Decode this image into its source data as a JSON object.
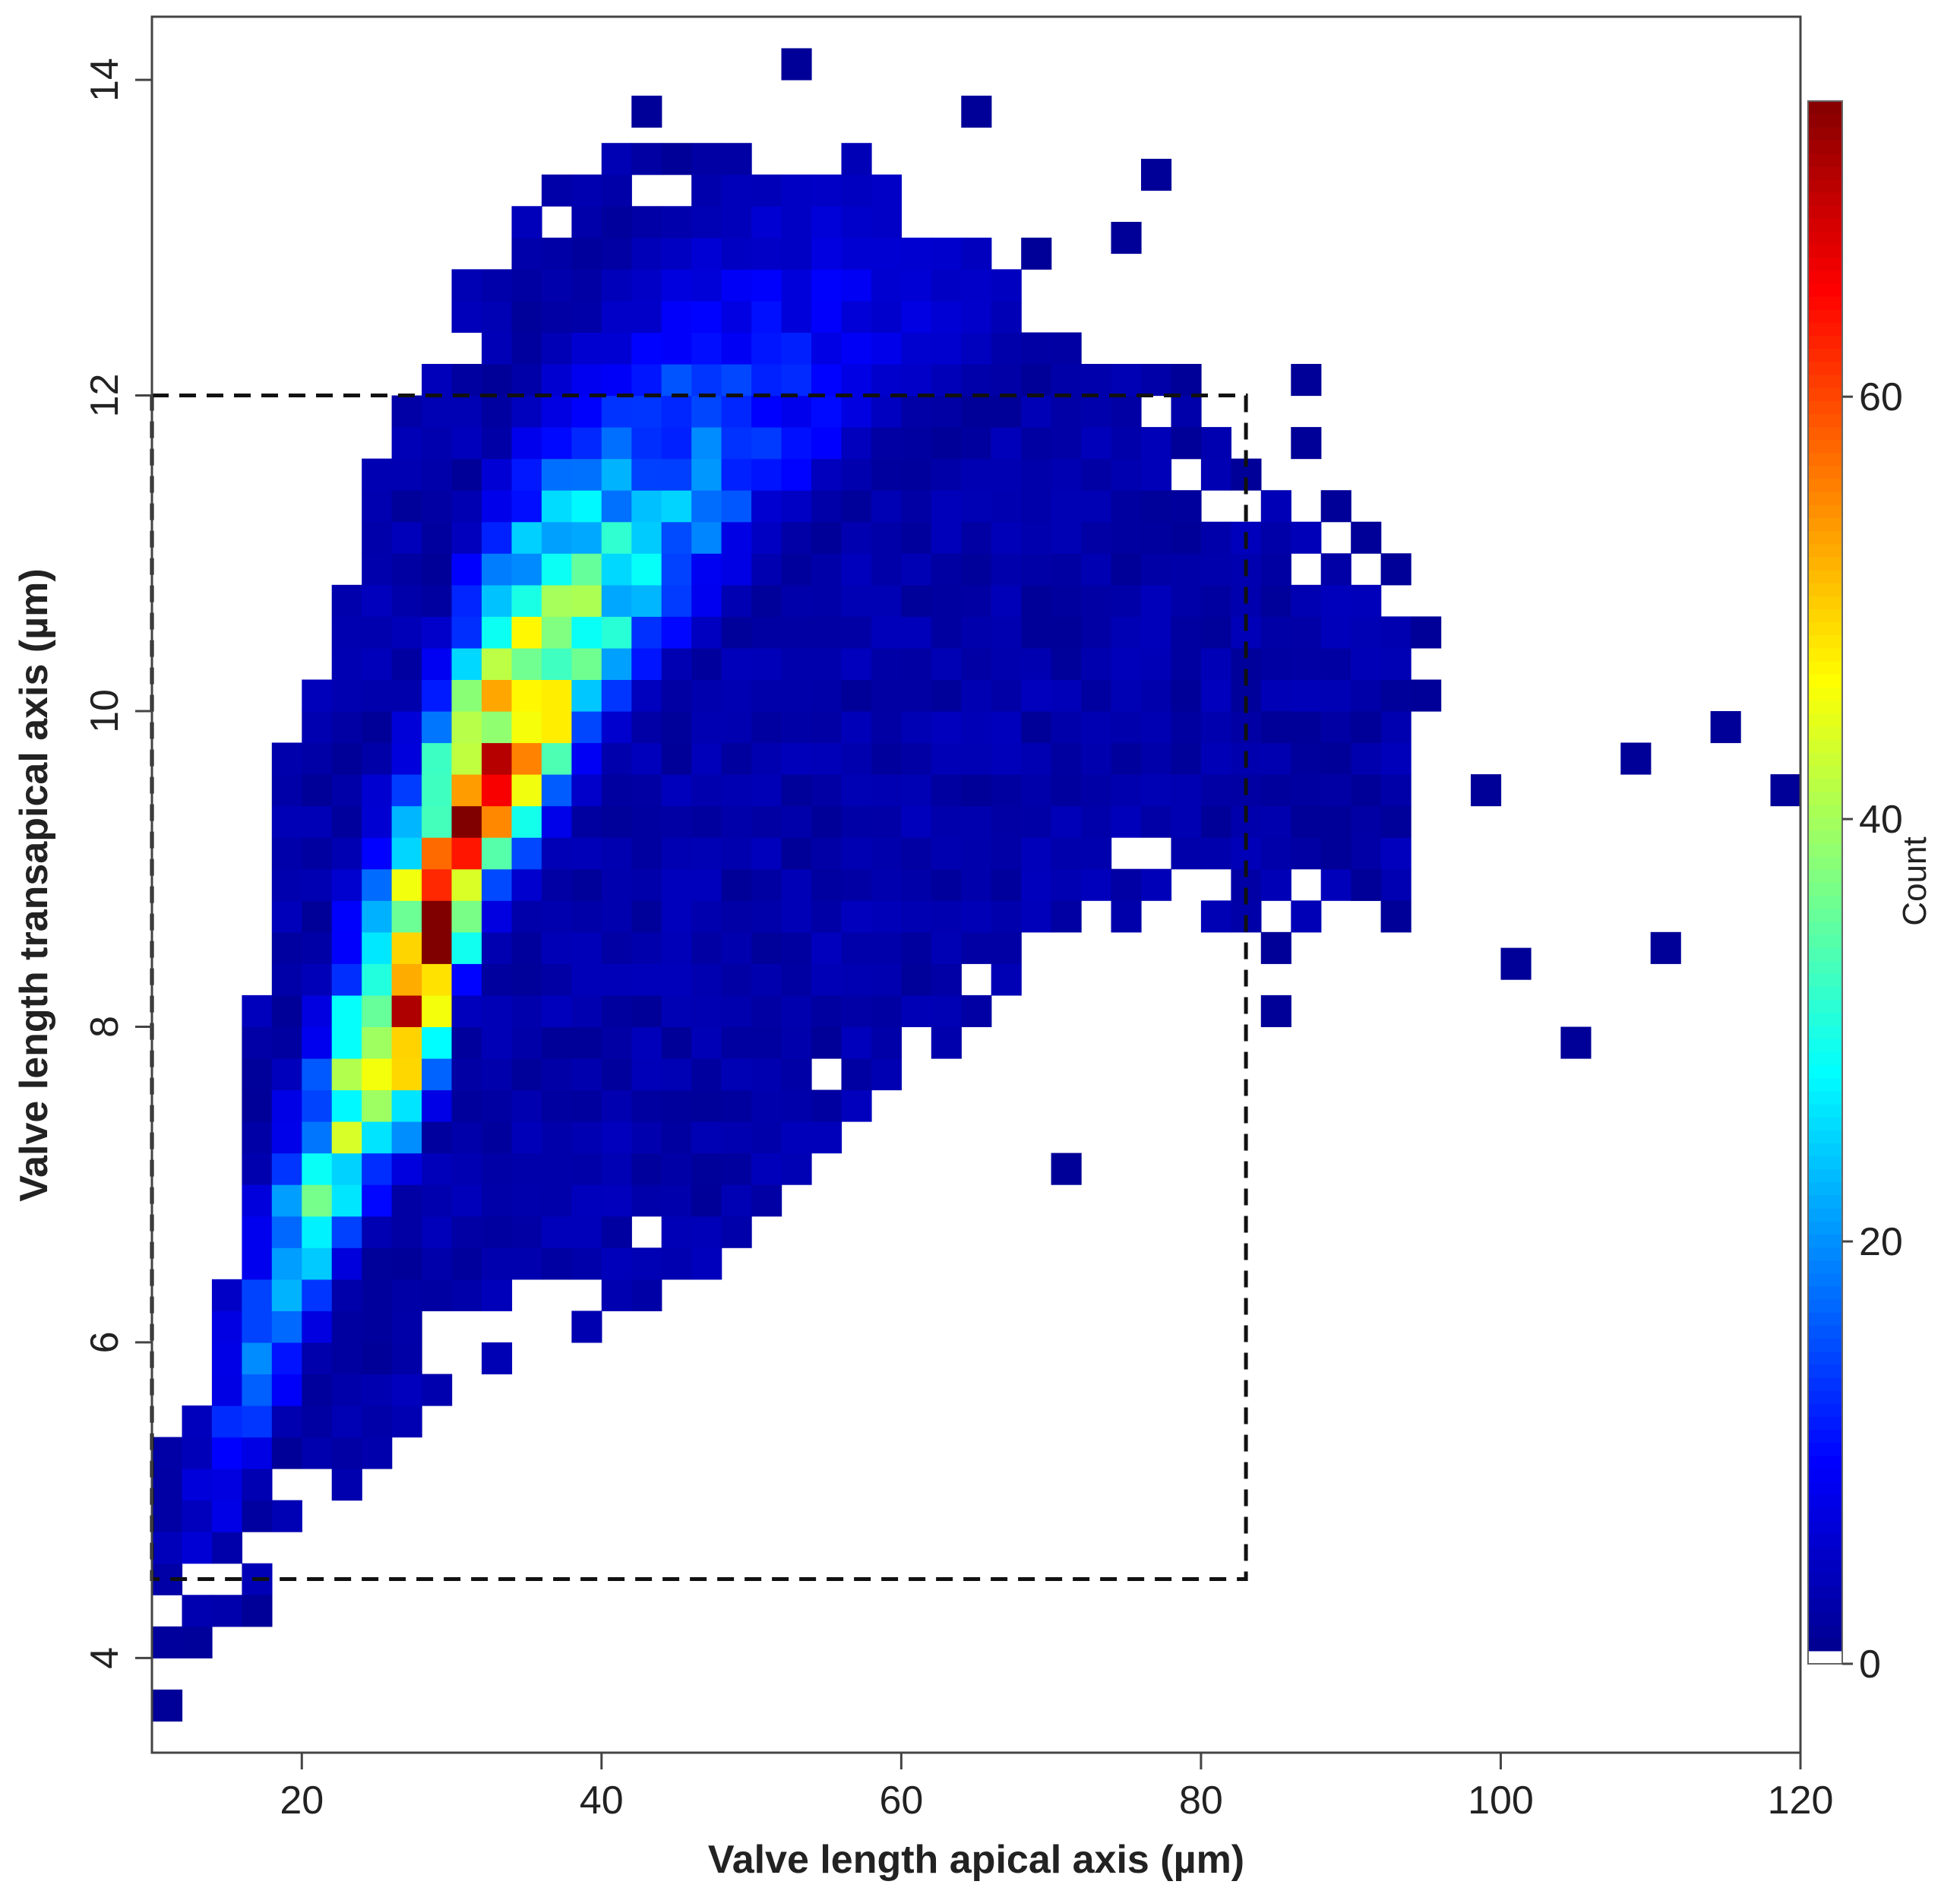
{
  "chart_data": {
    "type": "heatmap",
    "xlabel": "Valve length apical axis (µm)",
    "ylabel": "Valve length transapical axis (µm)",
    "xlim": [
      10,
      120
    ],
    "ylim": [
      3.4,
      14.4
    ],
    "x_ticks": [
      20,
      40,
      60,
      80,
      100,
      120
    ],
    "y_ticks": [
      4,
      6,
      8,
      10,
      12,
      14
    ],
    "x_tick_labels": [
      "20",
      "40",
      "60",
      "80",
      "100",
      "120"
    ],
    "y_tick_labels": [
      "4",
      "6",
      "8",
      "10",
      "12",
      "14"
    ],
    "bin_width_x": 2,
    "bin_width_y": 0.2,
    "colorbar": {
      "title": "Count",
      "range": [
        0,
        74
      ],
      "ticks": [
        0,
        20,
        40,
        60
      ],
      "tick_labels": [
        "0",
        "20",
        "40",
        "60"
      ],
      "colors": [
        "#ffffff",
        "#00008B",
        "#0000FF",
        "#0080FF",
        "#00FFFF",
        "#80FF80",
        "#FFFF00",
        "#FF8000",
        "#FF0000",
        "#800000"
      ]
    },
    "dashed_region": {
      "x": [
        10,
        83
      ],
      "y": [
        4.5,
        12
      ]
    },
    "density_ridge": [
      {
        "x": 12,
        "y": 4.6,
        "peak": 3
      },
      {
        "x": 16,
        "y": 5.6,
        "peak": 12
      },
      {
        "x": 20,
        "y": 6.6,
        "peak": 24
      },
      {
        "x": 24,
        "y": 7.6,
        "peak": 40
      },
      {
        "x": 28,
        "y": 8.2,
        "peak": 72
      },
      {
        "x": 30,
        "y": 8.8,
        "peak": 68
      },
      {
        "x": 32,
        "y": 9.4,
        "peak": 60
      },
      {
        "x": 36,
        "y": 10.0,
        "peak": 48
      },
      {
        "x": 42,
        "y": 10.8,
        "peak": 24
      },
      {
        "x": 50,
        "y": 11.6,
        "peak": 12
      },
      {
        "x": 60,
        "y": 12.4,
        "peak": 6
      },
      {
        "x": 75,
        "y": 13.0,
        "peak": 2
      }
    ],
    "outlier_cells": [
      {
        "x": 11,
        "y": 3.7,
        "count": 1
      },
      {
        "x": 17,
        "y": 4.3,
        "count": 1
      },
      {
        "x": 43,
        "y": 13.8,
        "count": 1
      },
      {
        "x": 53,
        "y": 14.1,
        "count": 1
      },
      {
        "x": 65,
        "y": 13.8,
        "count": 1
      },
      {
        "x": 77,
        "y": 13.4,
        "count": 1
      },
      {
        "x": 71,
        "y": 7.1,
        "count": 1
      },
      {
        "x": 99,
        "y": 9.5,
        "count": 1
      },
      {
        "x": 101,
        "y": 8.4,
        "count": 1
      },
      {
        "x": 105,
        "y": 7.9,
        "count": 1
      },
      {
        "x": 109,
        "y": 9.7,
        "count": 1
      },
      {
        "x": 111,
        "y": 8.5,
        "count": 1
      },
      {
        "x": 115,
        "y": 9.9,
        "count": 1
      },
      {
        "x": 119,
        "y": 9.5,
        "count": 1
      },
      {
        "x": 93,
        "y": 8.7,
        "count": 1
      },
      {
        "x": 95,
        "y": 10.1,
        "count": 1
      },
      {
        "x": 95,
        "y": 10.5,
        "count": 1
      },
      {
        "x": 89,
        "y": 11.3,
        "count": 1
      },
      {
        "x": 91,
        "y": 11.1,
        "count": 1
      },
      {
        "x": 87,
        "y": 12.1,
        "count": 1
      },
      {
        "x": 87,
        "y": 11.7,
        "count": 1
      },
      {
        "x": 85,
        "y": 9.9,
        "count": 1
      },
      {
        "x": 85,
        "y": 8.5,
        "count": 1
      },
      {
        "x": 85,
        "y": 8.1,
        "count": 1
      },
      {
        "x": 79,
        "y": 12.1,
        "count": 1
      },
      {
        "x": 79,
        "y": 11.7,
        "count": 1
      },
      {
        "x": 83,
        "y": 11.5,
        "count": 1
      },
      {
        "x": 89,
        "y": 9.7,
        "count": 1
      },
      {
        "x": 91,
        "y": 9.9,
        "count": 1
      },
      {
        "x": 89,
        "y": 9.1,
        "count": 1
      },
      {
        "x": 91,
        "y": 8.9,
        "count": 1
      },
      {
        "x": 87,
        "y": 9.3,
        "count": 1
      },
      {
        "x": 93,
        "y": 10.9,
        "count": 1
      },
      {
        "x": 75,
        "y": 13.0,
        "count": 1
      },
      {
        "x": 69,
        "y": 12.9,
        "count": 1
      }
    ]
  }
}
